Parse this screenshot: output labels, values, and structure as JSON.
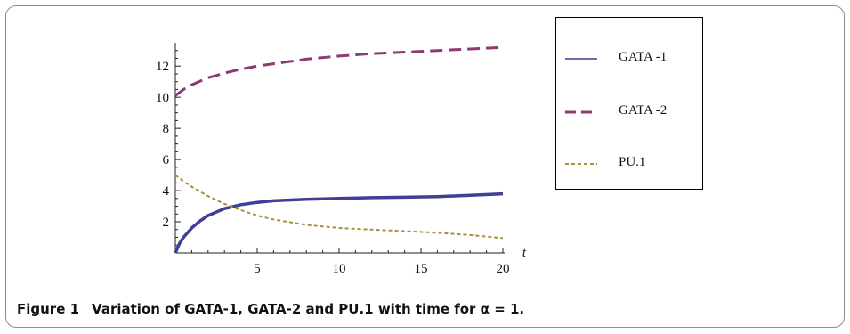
{
  "caption": {
    "figure_label": "Figure 1",
    "text": "Variation of GATA-1, GATA-2 and PU.1 with time for α = 1."
  },
  "chart_data": {
    "type": "line",
    "title": "",
    "xlabel": "t",
    "ylabel": "",
    "xlim": [
      0,
      20
    ],
    "ylim": [
      0,
      13.5
    ],
    "x_ticks": [
      5,
      10,
      15,
      20
    ],
    "y_ticks": [
      2,
      4,
      6,
      8,
      10,
      12
    ],
    "legend_position": "right",
    "series": [
      {
        "name": "GATA -1",
        "style": "solid",
        "color": "#3f3f96",
        "x": [
          0,
          0.25,
          0.5,
          1,
          1.5,
          2,
          3,
          4,
          5,
          6,
          8,
          10,
          12,
          14,
          16,
          18,
          20
        ],
        "y": [
          0,
          0.6,
          1.0,
          1.6,
          2.05,
          2.4,
          2.85,
          3.1,
          3.25,
          3.35,
          3.45,
          3.5,
          3.55,
          3.58,
          3.62,
          3.7,
          3.8
        ]
      },
      {
        "name": "GATA -2",
        "style": "dashed",
        "color": "#8c3a72",
        "x": [
          0,
          0.5,
          1,
          2,
          3,
          4,
          5,
          6,
          8,
          10,
          12,
          14,
          16,
          18,
          20
        ],
        "y": [
          10.1,
          10.5,
          10.8,
          11.25,
          11.55,
          11.8,
          12.0,
          12.15,
          12.45,
          12.65,
          12.8,
          12.9,
          13.0,
          13.1,
          13.2
        ]
      },
      {
        "name": "PU.1",
        "style": "dotted",
        "color": "#a8913a",
        "x": [
          0,
          0.5,
          1,
          2,
          3,
          4,
          5,
          6,
          8,
          10,
          12,
          14,
          16,
          18,
          20
        ],
        "y": [
          5.0,
          4.6,
          4.25,
          3.65,
          3.15,
          2.75,
          2.4,
          2.15,
          1.8,
          1.6,
          1.5,
          1.4,
          1.3,
          1.15,
          0.95
        ]
      }
    ]
  }
}
